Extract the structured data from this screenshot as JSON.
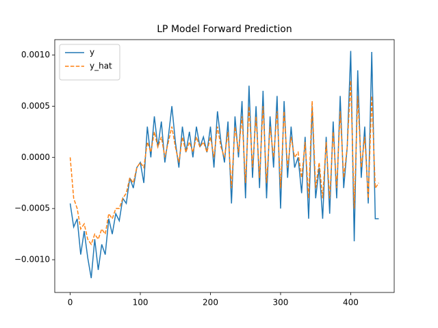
{
  "chart_data": {
    "type": "line",
    "title": "LP Model Forward Prediction",
    "x": [
      0,
      5,
      10,
      15,
      20,
      25,
      30,
      35,
      40,
      45,
      50,
      55,
      60,
      65,
      70,
      75,
      80,
      85,
      90,
      95,
      100,
      105,
      110,
      115,
      120,
      125,
      130,
      135,
      140,
      145,
      150,
      155,
      160,
      165,
      170,
      175,
      180,
      185,
      190,
      195,
      200,
      205,
      210,
      215,
      220,
      225,
      230,
      235,
      240,
      245,
      250,
      255,
      260,
      265,
      270,
      275,
      280,
      285,
      290,
      295,
      300,
      305,
      310,
      315,
      320,
      325,
      330,
      335,
      340,
      345,
      350,
      355,
      360,
      365,
      370,
      375,
      380,
      385,
      390,
      395,
      400,
      405,
      410,
      415,
      420,
      425,
      430,
      435,
      440
    ],
    "series": [
      {
        "name": "y",
        "color": "#1f77b4",
        "linestyle": "solid",
        "values": [
          -0.00045,
          -0.00068,
          -0.0006,
          -0.00095,
          -0.00072,
          -0.00098,
          -0.00118,
          -0.0008,
          -0.0011,
          -0.00085,
          -0.00095,
          -0.0006,
          -0.00075,
          -0.00055,
          -0.00062,
          -0.0004,
          -0.00045,
          -0.0002,
          -0.0003,
          -0.0001,
          -5e-05,
          -0.00025,
          0.0003,
          0.0,
          0.0004,
          0.0001,
          0.00035,
          -5e-05,
          0.0002,
          0.0005,
          0.00015,
          -0.0001,
          0.0003,
          5e-05,
          0.00025,
          0.0,
          0.0003,
          0.0001,
          0.0002,
          5e-05,
          0.0003,
          -0.0001,
          0.00045,
          0.00015,
          -5e-05,
          0.00035,
          -0.00045,
          0.0004,
          0.0,
          0.00055,
          -0.0004,
          0.0007,
          -0.0002,
          0.0005,
          -0.0003,
          0.00065,
          -0.0004,
          0.0004,
          -0.0001,
          0.0006,
          -0.0005,
          0.00055,
          -0.0002,
          0.0003,
          -0.0001,
          0.0,
          -0.00035,
          0.0002,
          -0.0006,
          0.0005,
          -0.0004,
          -0.0001,
          -0.0006,
          0.0002,
          -0.00055,
          0.00035,
          -0.0004,
          0.0006,
          -0.0003,
          0.0001,
          0.00104,
          -0.00082,
          0.00085,
          -0.0002,
          0.0003,
          -0.00045,
          0.00103,
          -0.0006,
          -0.0006
        ]
      },
      {
        "name": "y_hat",
        "color": "#ff7f0e",
        "linestyle": "dashed",
        "values": [
          0.0,
          -0.0004,
          -0.0005,
          -0.0007,
          -0.00065,
          -0.0008,
          -0.00085,
          -0.00075,
          -0.0008,
          -0.0007,
          -0.00075,
          -0.00055,
          -0.0006,
          -0.0005,
          -0.0005,
          -0.0004,
          -0.00035,
          -0.0002,
          -0.00025,
          -0.0001,
          -5e-05,
          -0.0001,
          0.00015,
          5e-05,
          0.00025,
          0.0001,
          0.0002,
          0.0,
          0.00015,
          0.0003,
          0.0001,
          -5e-05,
          0.0002,
          5e-05,
          0.00015,
          5e-05,
          0.0002,
          0.0001,
          0.00015,
          5e-05,
          0.0002,
          0.0,
          0.0003,
          0.0001,
          0.0,
          0.00025,
          -0.0003,
          0.0003,
          5e-05,
          0.0004,
          -0.00025,
          0.0005,
          -0.0001,
          0.0004,
          -0.0002,
          0.0005,
          -0.00025,
          0.0003,
          0.0,
          0.00045,
          -0.0003,
          0.00045,
          -0.0001,
          0.0002,
          0.0,
          5e-05,
          -0.0002,
          0.00015,
          -0.0004,
          0.00055,
          -0.0003,
          -5e-05,
          -0.0004,
          0.00015,
          -0.0004,
          0.00025,
          -0.0003,
          0.00045,
          -0.0002,
          0.0001,
          0.00075,
          -0.0005,
          0.0006,
          -0.0001,
          0.0002,
          -0.0004,
          0.0006,
          -0.0003,
          -0.00025
        ]
      }
    ],
    "xlim": [
      -22,
      462
    ],
    "xticks": [
      0,
      100,
      200,
      300,
      400
    ],
    "ylim": [
      -0.00132,
      0.00115
    ],
    "yticks": [
      {
        "value": -0.001,
        "label": "−0.0010"
      },
      {
        "value": -0.0005,
        "label": "−0.0005"
      },
      {
        "value": 0,
        "label": "0.0000"
      },
      {
        "value": 0.0005,
        "label": "0.0005"
      },
      {
        "value": 0.001,
        "label": "0.0010"
      }
    ],
    "legend": "upper left"
  }
}
